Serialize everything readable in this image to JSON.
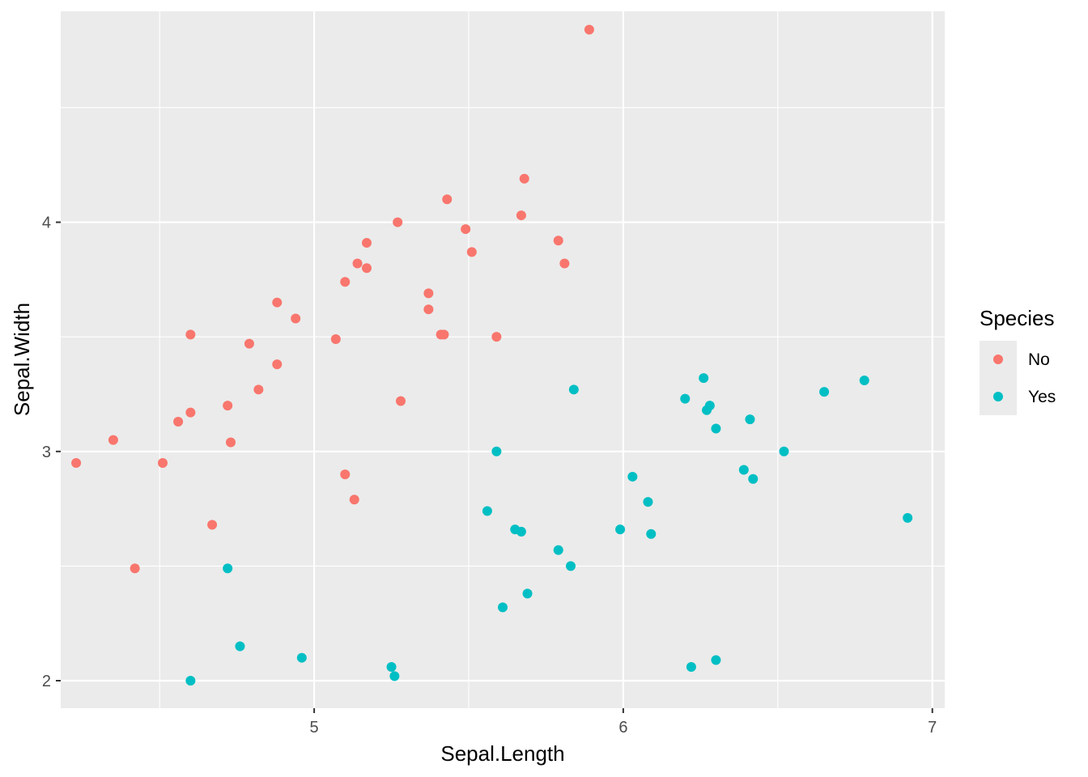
{
  "chart_data": {
    "type": "scatter",
    "title": "",
    "xlabel": "Sepal.Length",
    "ylabel": "Sepal.Width",
    "xlim": [
      4.18,
      7.04
    ],
    "ylim": [
      1.88,
      4.92
    ],
    "xticks": [
      5,
      6,
      7
    ],
    "xtick_labels": [
      "5",
      "6",
      "7"
    ],
    "yticks": [
      2,
      3,
      4
    ],
    "ytick_labels": [
      "2",
      "3",
      "4"
    ],
    "grid": true,
    "legend": {
      "title": "Species",
      "position": "right"
    },
    "series": [
      {
        "name": "No",
        "color": "#F8766D",
        "points": [
          [
            4.23,
            2.95
          ],
          [
            4.35,
            3.05
          ],
          [
            4.42,
            2.49
          ],
          [
            4.51,
            2.95
          ],
          [
            4.56,
            3.13
          ],
          [
            4.6,
            3.51
          ],
          [
            4.6,
            3.17
          ],
          [
            4.67,
            2.68
          ],
          [
            4.72,
            3.2
          ],
          [
            4.73,
            3.04
          ],
          [
            4.79,
            3.47
          ],
          [
            4.82,
            3.27
          ],
          [
            4.88,
            3.65
          ],
          [
            4.88,
            3.38
          ],
          [
            4.94,
            3.58
          ],
          [
            5.07,
            3.49
          ],
          [
            5.1,
            3.74
          ],
          [
            5.1,
            2.9
          ],
          [
            5.13,
            2.79
          ],
          [
            5.14,
            3.82
          ],
          [
            5.17,
            3.8
          ],
          [
            5.17,
            3.91
          ],
          [
            5.27,
            4.0
          ],
          [
            5.28,
            3.22
          ],
          [
            5.37,
            3.69
          ],
          [
            5.37,
            3.62
          ],
          [
            5.41,
            3.51
          ],
          [
            5.42,
            3.51
          ],
          [
            5.43,
            4.1
          ],
          [
            5.49,
            3.97
          ],
          [
            5.51,
            3.87
          ],
          [
            5.59,
            3.5
          ],
          [
            5.67,
            4.03
          ],
          [
            5.68,
            4.19
          ],
          [
            5.79,
            3.92
          ],
          [
            5.81,
            3.82
          ],
          [
            5.89,
            4.84
          ]
        ]
      },
      {
        "name": "Yes",
        "color": "#00BFC4",
        "points": [
          [
            4.6,
            2.0
          ],
          [
            4.72,
            2.49
          ],
          [
            4.76,
            2.15
          ],
          [
            4.96,
            2.1
          ],
          [
            5.25,
            2.06
          ],
          [
            5.26,
            2.02
          ],
          [
            5.56,
            2.74
          ],
          [
            5.59,
            3.0
          ],
          [
            5.61,
            2.32
          ],
          [
            5.65,
            2.66
          ],
          [
            5.67,
            2.65
          ],
          [
            5.69,
            2.38
          ],
          [
            5.79,
            2.57
          ],
          [
            5.83,
            2.5
          ],
          [
            5.84,
            3.27
          ],
          [
            5.99,
            2.66
          ],
          [
            6.03,
            2.89
          ],
          [
            6.08,
            2.78
          ],
          [
            6.09,
            2.64
          ],
          [
            6.2,
            3.23
          ],
          [
            6.22,
            2.06
          ],
          [
            6.26,
            3.32
          ],
          [
            6.27,
            3.18
          ],
          [
            6.28,
            3.2
          ],
          [
            6.3,
            3.1
          ],
          [
            6.3,
            2.09
          ],
          [
            6.39,
            2.92
          ],
          [
            6.41,
            3.14
          ],
          [
            6.42,
            2.88
          ],
          [
            6.52,
            3.0
          ],
          [
            6.65,
            3.26
          ],
          [
            6.78,
            3.31
          ],
          [
            6.92,
            2.71
          ]
        ]
      }
    ]
  }
}
